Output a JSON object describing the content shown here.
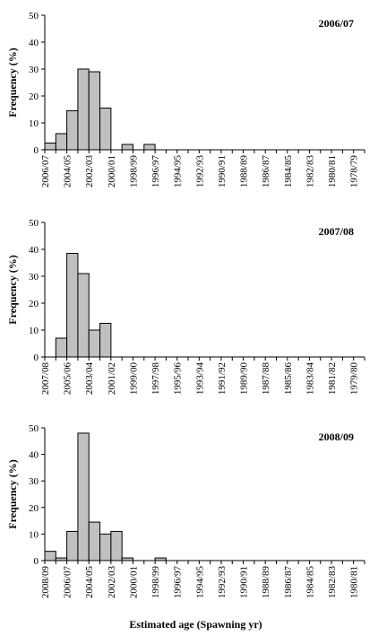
{
  "chart_data": [
    {
      "type": "bar",
      "title": "2006/07",
      "ylabel": "Frequency (%)",
      "xlabel": "",
      "ylim": [
        0,
        50
      ],
      "yticks": [
        "0",
        "10",
        "20",
        "30",
        "40",
        "50"
      ],
      "tick_labels": [
        "2006/07",
        "2004/05",
        "2002/03",
        "2000/01",
        "1998/99",
        "1996/97",
        "1994/95",
        "1992/93",
        "1990/91",
        "1988/89",
        "1986/87",
        "1984/85",
        "1982/83",
        "1980/81",
        "1978/79"
      ],
      "values": [
        2.5,
        6,
        14.5,
        30,
        29,
        15.5,
        0,
        2,
        0,
        2,
        0,
        0,
        0,
        0,
        0,
        0,
        0,
        0,
        0,
        0,
        0,
        0,
        0,
        0,
        0,
        0,
        0,
        0,
        0
      ]
    },
    {
      "type": "bar",
      "title": "2007/08",
      "ylabel": "Frequency (%)",
      "xlabel": "",
      "ylim": [
        0,
        50
      ],
      "yticks": [
        "0",
        "10",
        "20",
        "30",
        "40",
        "50"
      ],
      "tick_labels": [
        "2007/08",
        "2005/06",
        "2003/04",
        "2001/02",
        "1999/00",
        "1997/98",
        "1995/96",
        "1993/94",
        "1991/92",
        "1989/90",
        "1987/88",
        "1985/86",
        "1983/84",
        "1981/82",
        "1979/80"
      ],
      "values": [
        0,
        7,
        38.5,
        31,
        10,
        12.5,
        0,
        0,
        0,
        0,
        0,
        0,
        0,
        0,
        0,
        0,
        0,
        0,
        0,
        0,
        0,
        0,
        0,
        0,
        0,
        0,
        0,
        0,
        0
      ]
    },
    {
      "type": "bar",
      "title": "2008/09",
      "ylabel": "Frequency (%)",
      "xlabel": "Estimated age (Spawning yr)",
      "ylim": [
        0,
        50
      ],
      "yticks": [
        "0",
        "10",
        "20",
        "30",
        "40",
        "50"
      ],
      "tick_labels": [
        "2008/09",
        "2006/07",
        "2004/05",
        "2002/03",
        "2000/01",
        "1998/99",
        "1996/97",
        "1994/95",
        "1992/93",
        "1990/91",
        "1988/89",
        "1986/87",
        "1984/85",
        "1982/83",
        "1980/81"
      ],
      "values": [
        3.5,
        1,
        11,
        48,
        14.5,
        10,
        11,
        1,
        0,
        0,
        1,
        0,
        0,
        0,
        0,
        0,
        0,
        0,
        0,
        0,
        0,
        0,
        0,
        0,
        0,
        0,
        0,
        0,
        0
      ]
    }
  ]
}
